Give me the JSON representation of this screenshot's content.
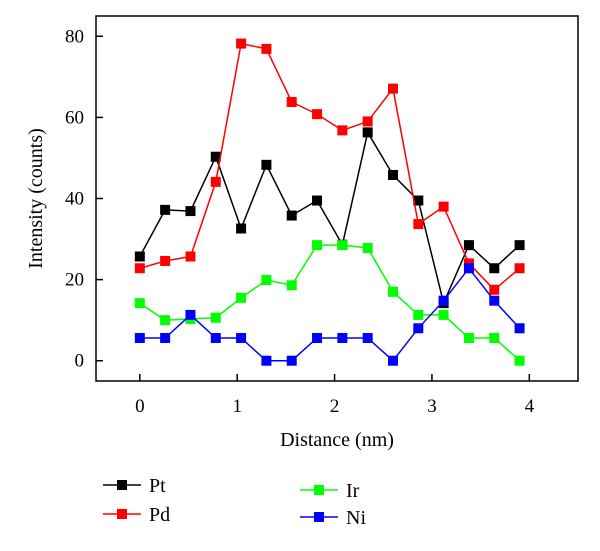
{
  "chart_data": {
    "type": "line",
    "xlabel": "Distance (nm)",
    "ylabel": "Intensity (counts)",
    "xlim": [
      -0.45,
      4.5
    ],
    "ylim": [
      -5,
      85
    ],
    "xticks": [
      0,
      1,
      2,
      3,
      4
    ],
    "yticks": [
      0,
      20,
      40,
      60,
      80
    ],
    "grid": false,
    "legend_position": "below plot, two columns",
    "x": [
      0,
      0.26,
      0.52,
      0.78,
      1.04,
      1.3,
      1.56,
      1.82,
      2.08,
      2.34,
      2.6,
      2.86,
      3.12,
      3.38,
      3.64,
      3.9
    ],
    "series": [
      {
        "name": "Pt",
        "color": "#000000",
        "values": [
          25.7,
          37.2,
          36.9,
          50.3,
          32.6,
          48.3,
          35.8,
          39.5,
          28.6,
          56.3,
          45.8,
          39.5,
          14.2,
          28.5,
          22.8,
          28.5
        ]
      },
      {
        "name": "Pd",
        "color": "#ff0000",
        "values": [
          22.8,
          24.6,
          25.7,
          44.1,
          78.2,
          76.9,
          63.8,
          60.8,
          56.8,
          59.0,
          67.1,
          33.7,
          38.0,
          24.0,
          17.5,
          22.8
        ]
      },
      {
        "name": "Ir",
        "color": "#00ff00",
        "values": [
          14.2,
          10.0,
          10.3,
          10.6,
          15.5,
          19.9,
          18.6,
          28.5,
          28.5,
          27.8,
          17.0,
          11.3,
          11.3,
          5.6,
          5.6,
          0
        ]
      },
      {
        "name": "Ni",
        "color": "#0000ff",
        "values": [
          5.6,
          5.6,
          11.3,
          5.6,
          5.6,
          0,
          0,
          5.6,
          5.6,
          5.6,
          0,
          8.0,
          14.8,
          22.8,
          14.8,
          8.0
        ]
      }
    ]
  }
}
